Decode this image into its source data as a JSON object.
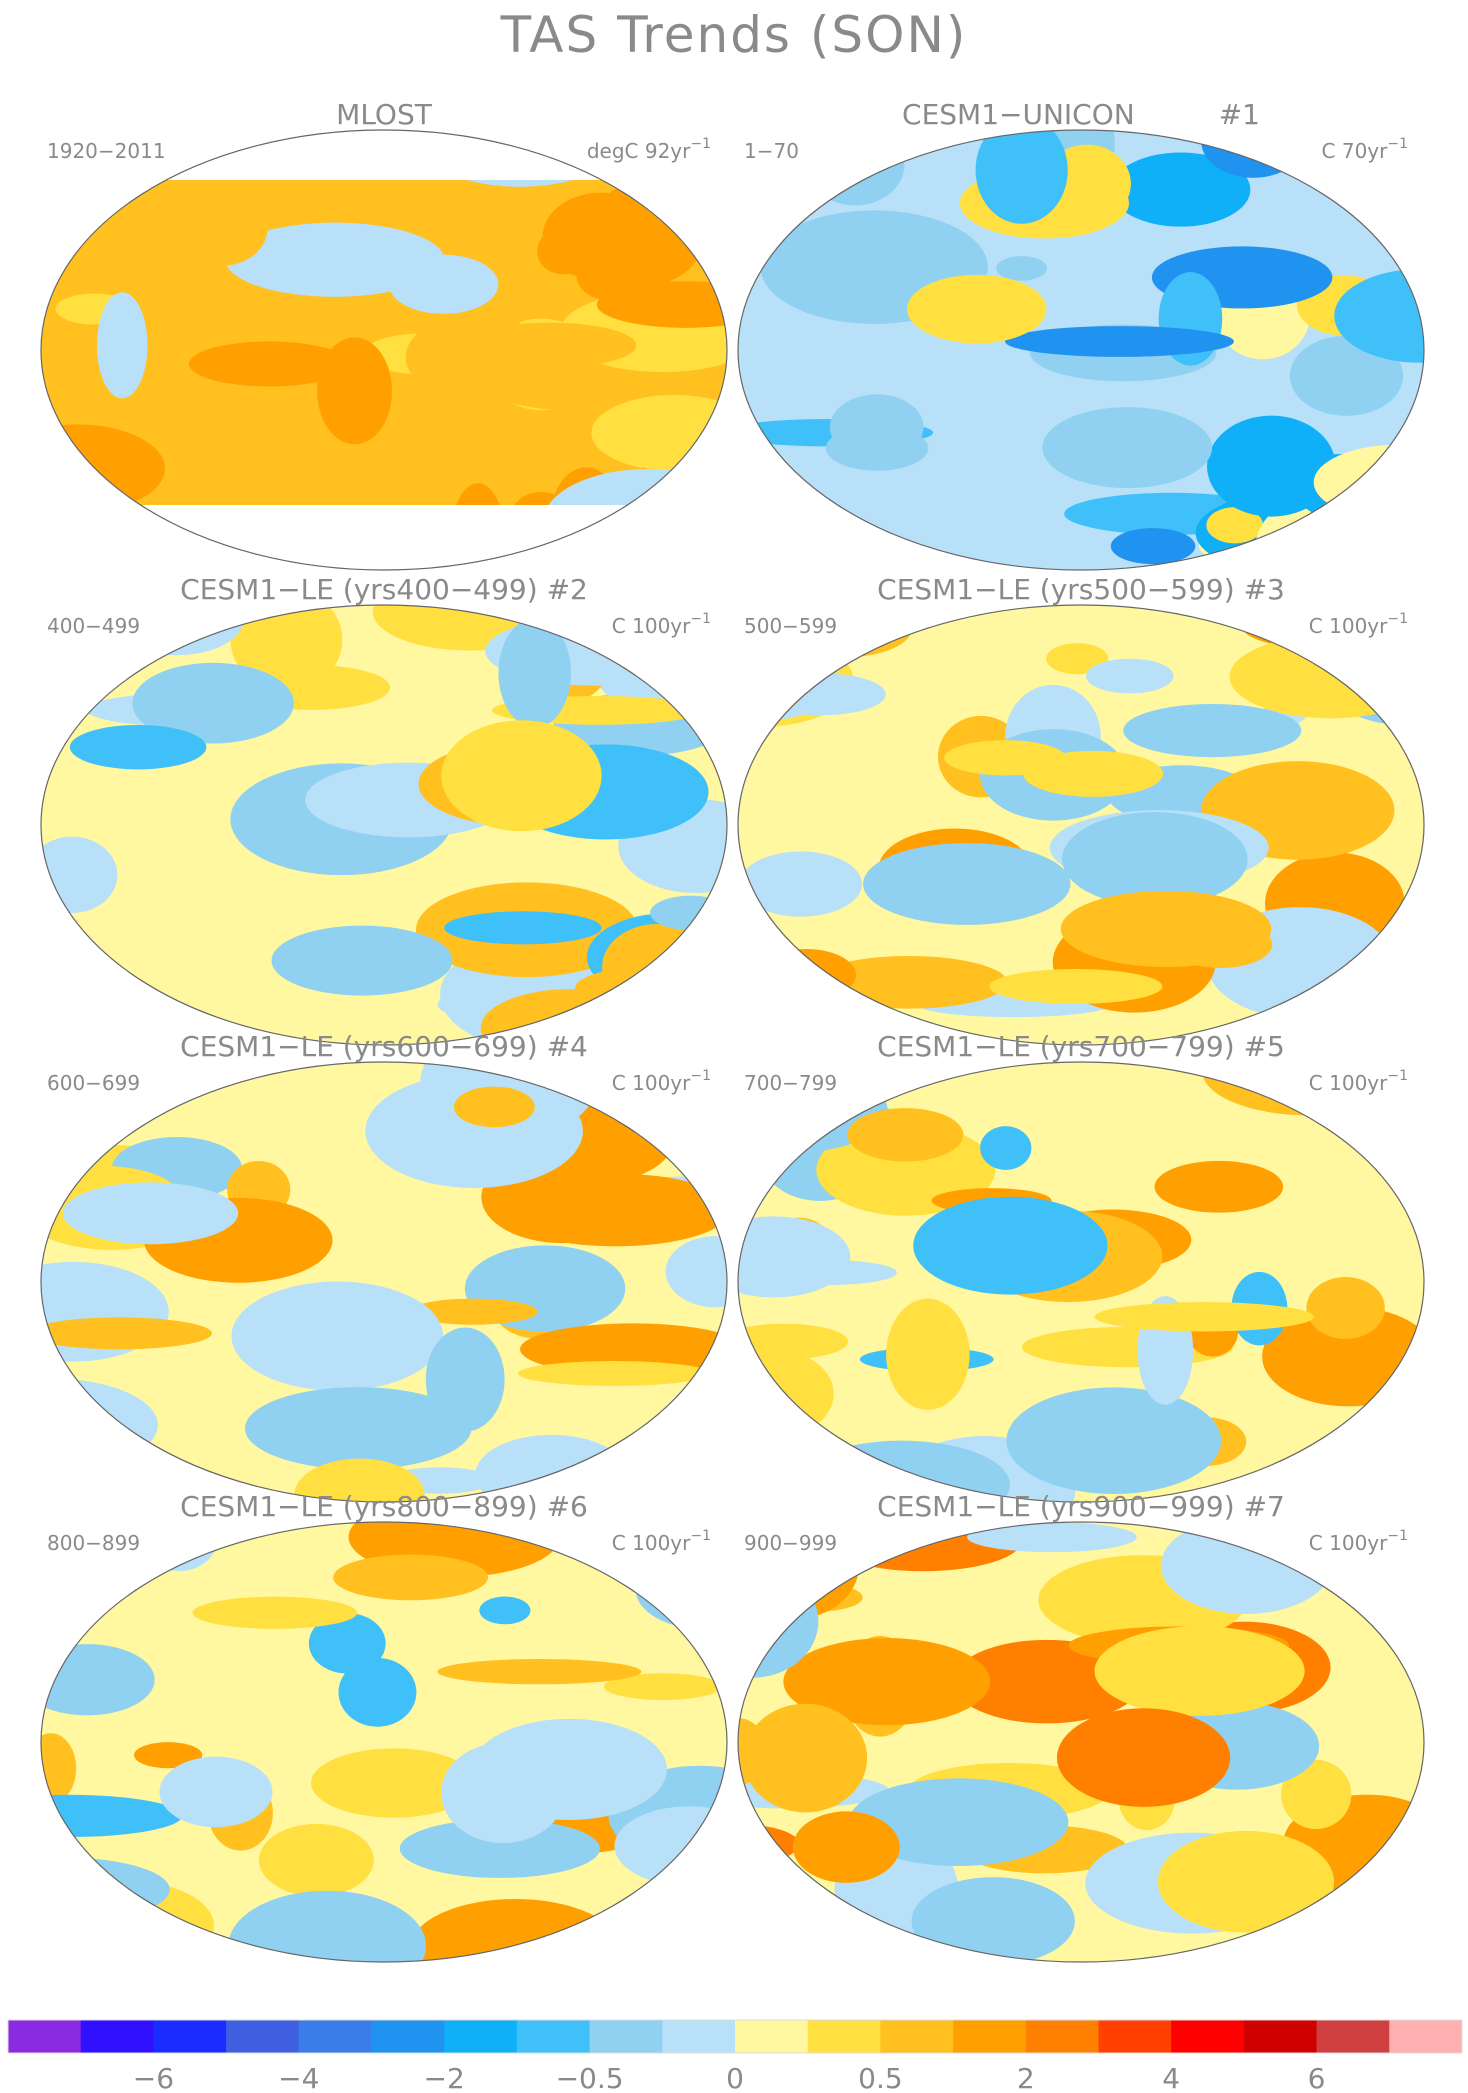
{
  "title": "TAS Trends (SON)",
  "panels": [
    {
      "title": "MLOST",
      "period": "1920−2011",
      "units": "degC 92yr",
      "units_exp": "−1"
    },
    {
      "title": "CESM1−UNICON",
      "number": "#1",
      "period": "1−70",
      "units": "C 70yr",
      "units_exp": "−1"
    },
    {
      "title": "CESM1−LE (yrs400−499)",
      "number": "#2",
      "period": "400−499",
      "units": "C 100yr",
      "units_exp": "−1"
    },
    {
      "title": "CESM1−LE (yrs500−599)",
      "number": "#3",
      "period": "500−599",
      "units": "C 100yr",
      "units_exp": "−1"
    },
    {
      "title": "CESM1−LE (yrs600−699)",
      "number": "#4",
      "period": "600−699",
      "units": "C 100yr",
      "units_exp": "−1"
    },
    {
      "title": "CESM1−LE (yrs700−799)",
      "number": "#5",
      "period": "700−799",
      "units": "C 100yr",
      "units_exp": "−1"
    },
    {
      "title": "CESM1−LE (yrs800−899)",
      "number": "#6",
      "period": "800−899",
      "units": "C 100yr",
      "units_exp": "−1"
    },
    {
      "title": "CESM1−LE (yrs900−999)",
      "number": "#7",
      "period": "900−999",
      "units": "C 100yr",
      "units_exp": "−1"
    }
  ],
  "colorbar": {
    "colors": [
      "#8a2be2",
      "#3010ff",
      "#1a2cff",
      "#3e5fe0",
      "#3a7de8",
      "#2092f0",
      "#10b0f8",
      "#40c0f8",
      "#90d0f0",
      "#b8e0f8",
      "#fff8a0",
      "#ffe040",
      "#ffc020",
      "#ffa000",
      "#ff8000",
      "#ff4000",
      "#ff0000",
      "#d00000",
      "#d04040",
      "#ffb0b0"
    ],
    "ticks": [
      -6,
      -4,
      -2,
      -0.5,
      0,
      0.5,
      2,
      4,
      6
    ]
  }
}
